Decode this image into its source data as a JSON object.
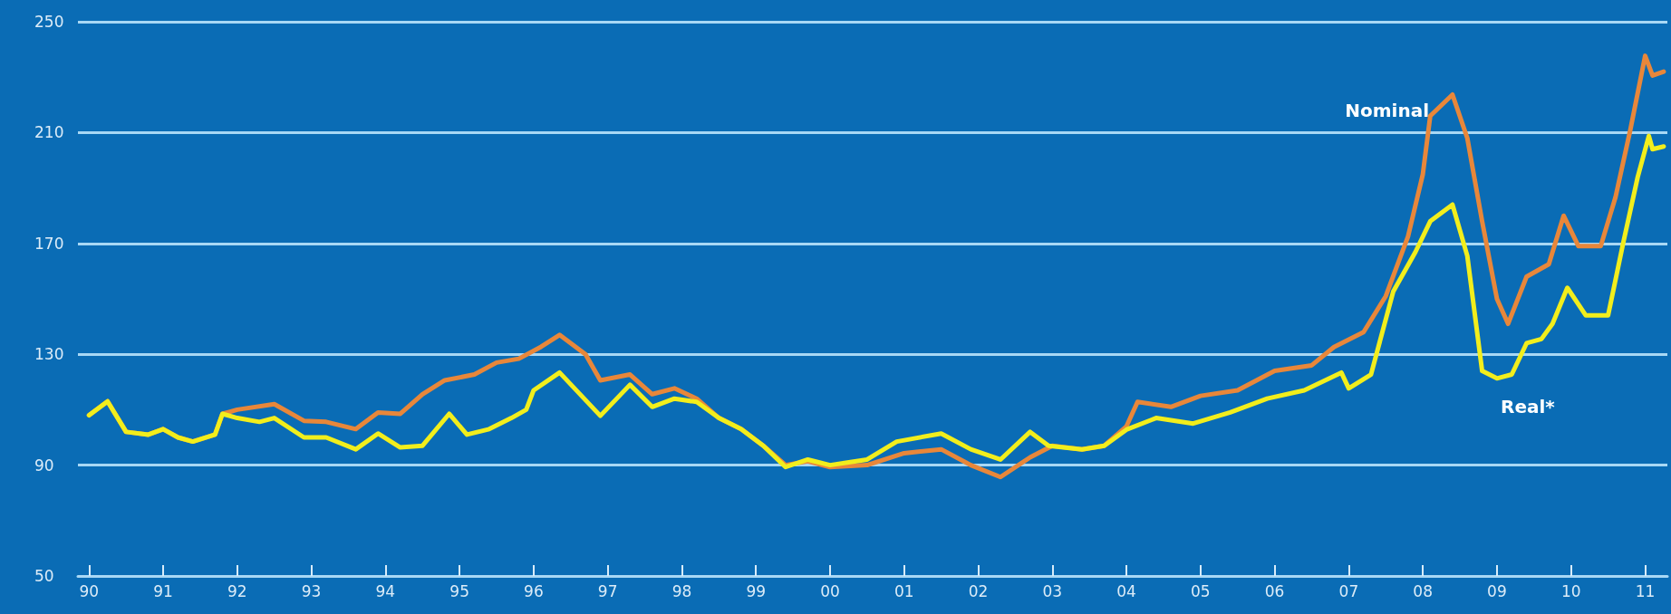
{
  "chart_data": {
    "type": "line",
    "xlim": [
      1989.85,
      2011.3
    ],
    "xticks": [
      {
        "value": 1990,
        "label": "90"
      },
      {
        "value": 1991,
        "label": "91"
      },
      {
        "value": 1992,
        "label": "92"
      },
      {
        "value": 1993,
        "label": "93"
      },
      {
        "value": 1994,
        "label": "94"
      },
      {
        "value": 1995,
        "label": "95"
      },
      {
        "value": 1996,
        "label": "96"
      },
      {
        "value": 1997,
        "label": "97"
      },
      {
        "value": 1998,
        "label": "98"
      },
      {
        "value": 1999,
        "label": "99"
      },
      {
        "value": 2000,
        "label": "00"
      },
      {
        "value": 2001,
        "label": "01"
      },
      {
        "value": 2002,
        "label": "02"
      },
      {
        "value": 2003,
        "label": "03"
      },
      {
        "value": 2004,
        "label": "04"
      },
      {
        "value": 2005,
        "label": "05"
      },
      {
        "value": 2006,
        "label": "06"
      },
      {
        "value": 2007,
        "label": "07"
      },
      {
        "value": 2008,
        "label": "08"
      },
      {
        "value": 2009,
        "label": "09"
      },
      {
        "value": 2010,
        "label": "10"
      },
      {
        "value": 2011,
        "label": "11"
      }
    ],
    "ylim": [
      50,
      250
    ],
    "yticks": [
      50,
      90,
      130,
      170,
      210,
      250
    ],
    "grid": "y",
    "legend": false,
    "marker": "none",
    "line_style": "solid",
    "series": [
      {
        "name": "Nominal",
        "color": "#e8873a",
        "x": [
          1990.0,
          1990.25,
          1990.5,
          1990.8,
          1991.0,
          1991.2,
          1991.4,
          1991.7,
          1991.8,
          1992.0,
          1992.5,
          1992.9,
          1993.2,
          1993.6,
          1993.9,
          1994.2,
          1994.5,
          1994.8,
          1995.2,
          1995.5,
          1995.8,
          1996.1,
          1996.35,
          1996.7,
          1996.9,
          1997.3,
          1997.6,
          1997.9,
          1998.2,
          1998.5,
          1998.8,
          1999.1,
          1999.4,
          1999.7,
          2000.0,
          2000.5,
          2001.0,
          2001.5,
          2001.9,
          2002.3,
          2002.7,
          2003.0,
          2003.4,
          2003.7,
          2004.0,
          2004.15,
          2004.6,
          2005.0,
          2005.5,
          2006.0,
          2006.5,
          2006.8,
          2007.2,
          2007.5,
          2007.8,
          2008.0,
          2008.1,
          2008.4,
          2008.6,
          2008.8,
          2009.0,
          2009.15,
          2009.4,
          2009.7,
          2009.9,
          2010.1,
          2010.4,
          2010.6,
          2010.8,
          2011.0,
          2011.1,
          2011.25
        ],
        "values": [
          108,
          113,
          102,
          101,
          103,
          100,
          98.5,
          101,
          108.5,
          110,
          112,
          106,
          105.6,
          103,
          109,
          108.5,
          115.6,
          120.6,
          122.7,
          127,
          128.4,
          132.7,
          137,
          130,
          120.6,
          122.7,
          115.6,
          117.7,
          114,
          107,
          103,
          97,
          90,
          91.4,
          89.3,
          90,
          94.3,
          95.7,
          90,
          85.7,
          92.8,
          97,
          95.7,
          97,
          104,
          112.8,
          111,
          115,
          117,
          124,
          126,
          132.6,
          138,
          151,
          172.5,
          195,
          216,
          223.7,
          208,
          178,
          150,
          141,
          158,
          162.5,
          180,
          169,
          169,
          186.7,
          211,
          237.7,
          230.6,
          232
        ]
      },
      {
        "name": "Real*",
        "color": "#f2ee1c",
        "x": [
          1990.0,
          1990.25,
          1990.5,
          1990.8,
          1991.0,
          1991.2,
          1991.4,
          1991.7,
          1991.8,
          1992.0,
          1992.3,
          1992.5,
          1992.9,
          1993.2,
          1993.6,
          1993.9,
          1994.2,
          1994.5,
          1994.86,
          1995.1,
          1995.4,
          1995.7,
          1995.9,
          1996.0,
          1996.35,
          1996.9,
          1997.3,
          1997.6,
          1997.9,
          1998.2,
          1998.5,
          1998.8,
          1999.1,
          1999.4,
          1999.7,
          2000.0,
          2000.5,
          2000.9,
          2001.5,
          2001.9,
          2002.3,
          2002.7,
          2002.95,
          2003.4,
          2003.7,
          2004.0,
          2004.4,
          2004.9,
          2005.4,
          2005.9,
          2006.4,
          2006.9,
          2007.0,
          2007.3,
          2007.6,
          2007.9,
          2008.1,
          2008.4,
          2008.6,
          2008.8,
          2009.0,
          2009.2,
          2009.4,
          2009.6,
          2009.75,
          2009.95,
          2010.2,
          2010.5,
          2010.7,
          2010.9,
          2011.05,
          2011.1,
          2011.25
        ],
        "values": [
          108,
          113,
          102,
          101,
          103,
          100,
          98.5,
          101,
          108.5,
          107,
          105.6,
          107,
          100,
          100,
          95.7,
          101.4,
          96.4,
          97,
          108.5,
          101,
          103,
          107,
          110,
          117,
          123.4,
          107.8,
          119,
          111,
          114,
          112.8,
          107,
          103,
          97,
          89.3,
          92,
          90,
          92,
          98.5,
          101.4,
          95.7,
          92,
          102,
          97,
          95.7,
          97,
          102.8,
          107,
          105,
          109,
          114,
          117,
          123.4,
          117.7,
          122.7,
          152.6,
          166.9,
          178,
          184,
          165.5,
          124,
          121.3,
          122.7,
          134,
          135.5,
          141,
          154,
          144,
          144,
          169.7,
          194,
          208.8,
          204,
          205
        ]
      }
    ]
  }
}
